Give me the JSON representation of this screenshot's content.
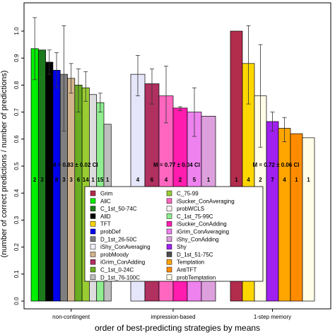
{
  "chart_data": {
    "type": "bar",
    "xlabel": "order of best-predicting strategies by means",
    "ylabel": "(number of correct predictions / number of predictions)",
    "ylim": [
      0,
      1.0
    ],
    "yticks": [
      "0.0",
      "0.1",
      "0.2",
      "0.3",
      "0.4",
      "0.5",
      "0.6",
      "0.7",
      "0.8",
      "0.9",
      "1.0"
    ],
    "grid": false,
    "legend_placement": "bottom-center",
    "legend": [
      {
        "name": "Grim",
        "color": "#b22c4c"
      },
      {
        "name": "AllC",
        "color": "#00ee00"
      },
      {
        "name": "C_1st_50-74C",
        "color": "#1c7a1c"
      },
      {
        "name": "AllD",
        "color": "#000000"
      },
      {
        "name": "TFT",
        "color": "#ffd700"
      },
      {
        "name": "probDef",
        "color": "#0000ee"
      },
      {
        "name": "D_1st_26-50C",
        "color": "#7f7f7f"
      },
      {
        "name": "iShy_ConAveraging",
        "color": "#f0f0ff"
      },
      {
        "name": "probMoody",
        "color": "#d2b48c"
      },
      {
        "name": "iGrim_ConAdding",
        "color": "#b03060"
      },
      {
        "name": "C_1st_0-24C",
        "color": "#6bad23"
      },
      {
        "name": "D_1st_76-100C",
        "color": "#bebebe"
      },
      {
        "name": "C_75-99",
        "color": "#9acd32"
      },
      {
        "name": "iSucker_ConAveraging",
        "color": "#ff66c0"
      },
      {
        "name": "probWCLS",
        "color": "#fff5f5"
      },
      {
        "name": "C_1st_75-99C",
        "color": "#90ee90"
      },
      {
        "name": "iSucker_ConAdding",
        "color": "#ff1cae"
      },
      {
        "name": "iGrim_ConAveraging",
        "color": "#ee82ee"
      },
      {
        "name": "iShy_ConAdding",
        "color": "#dda0dd"
      },
      {
        "name": "Shy",
        "color": "#a020f0"
      },
      {
        "name": "D_1st_51-75C",
        "color": "#4d4d4d"
      },
      {
        "name": "Temptation",
        "color": "#ffa500"
      },
      {
        "name": "AntiTFT",
        "color": "#ff8c00"
      },
      {
        "name": "probTemptation",
        "color": "#fffde8"
      }
    ],
    "groups": [
      {
        "name": "non-contingent",
        "annotation": "M = 0.83 ± 0.02  CI",
        "bars": [
          {
            "value": 0.935,
            "err_low": 0.82,
            "err_high": 1.05,
            "count": "2",
            "color": "#00ee00"
          },
          {
            "value": 0.93,
            "err_low": null,
            "err_high": null,
            "count": "3",
            "color": "#1c7a1c"
          },
          {
            "value": 0.885,
            "err_low": 0.84,
            "err_high": 0.93,
            "count": "36",
            "color": "#000000"
          },
          {
            "value": 0.855,
            "err_low": 0.79,
            "err_high": 0.92,
            "count": "8",
            "color": "#0000ee"
          },
          {
            "value": 0.84,
            "err_low": 0.63,
            "err_high": 1.02,
            "count": "3",
            "color": "#7f7f7f"
          },
          {
            "value": 0.825,
            "err_low": 0.77,
            "err_high": 0.88,
            "count": "3",
            "color": "#d2b48c"
          },
          {
            "value": 0.8,
            "err_low": 0.7,
            "err_high": 0.86,
            "count": "6",
            "color": "#6bad23"
          },
          {
            "value": 0.79,
            "err_low": 0.74,
            "err_high": 0.85,
            "count": "14",
            "color": "#9acd32"
          },
          {
            "value": 0.765,
            "err_low": null,
            "err_high": null,
            "count": "1",
            "color": "#dddddd"
          },
          {
            "value": 0.735,
            "err_low": 0.7,
            "err_high": 0.77,
            "count": "15",
            "color": "#90ee90"
          },
          {
            "value": 0.655,
            "err_low": null,
            "err_high": null,
            "count": "1",
            "color": "#bebebe"
          }
        ]
      },
      {
        "name": "impression-based",
        "annotation": "M = 0.77 ± 0.04  CI",
        "bars": [
          {
            "value": 0.84,
            "err_low": 0.76,
            "err_high": 0.91,
            "count": "4",
            "color": "#e6e6fa"
          },
          {
            "value": 0.805,
            "err_low": 0.73,
            "err_high": 0.86,
            "count": "6",
            "color": "#b03060"
          },
          {
            "value": 0.76,
            "err_low": 0.66,
            "err_high": 0.87,
            "count": "4",
            "color": "#ff66c0"
          },
          {
            "value": 0.715,
            "err_low": 0.705,
            "err_high": 0.72,
            "count": "2",
            "color": "#ff1cae"
          },
          {
            "value": 0.7,
            "err_low": 0.61,
            "err_high": 0.79,
            "count": "5",
            "color": "#ee82ee"
          },
          {
            "value": 0.685,
            "err_low": null,
            "err_high": null,
            "count": "1",
            "color": "#dda0dd"
          }
        ]
      },
      {
        "name": "1-step memory",
        "annotation": "M = 0.72 ± 0.06  CI",
        "bars": [
          {
            "value": 1.0,
            "err_low": null,
            "err_high": null,
            "count": "1",
            "color": "#b22c4c"
          },
          {
            "value": 0.88,
            "err_low": 0.73,
            "err_high": 1.02,
            "count": "4",
            "color": "#ffd700"
          },
          {
            "value": 0.76,
            "err_low": 0.57,
            "err_high": 0.95,
            "count": "2",
            "color": "#fffde8"
          },
          {
            "value": 0.665,
            "err_low": 0.63,
            "err_high": 0.7,
            "count": "7",
            "color": "#a020f0"
          },
          {
            "value": 0.64,
            "err_low": 0.59,
            "err_high": 0.68,
            "count": "4",
            "color": "#ffa500"
          },
          {
            "value": 0.62,
            "err_low": null,
            "err_high": null,
            "count": "1",
            "color": "#ff8c00"
          },
          {
            "value": 0.605,
            "err_low": null,
            "err_high": null,
            "count": "1",
            "color": "#fffde8"
          }
        ]
      }
    ]
  }
}
